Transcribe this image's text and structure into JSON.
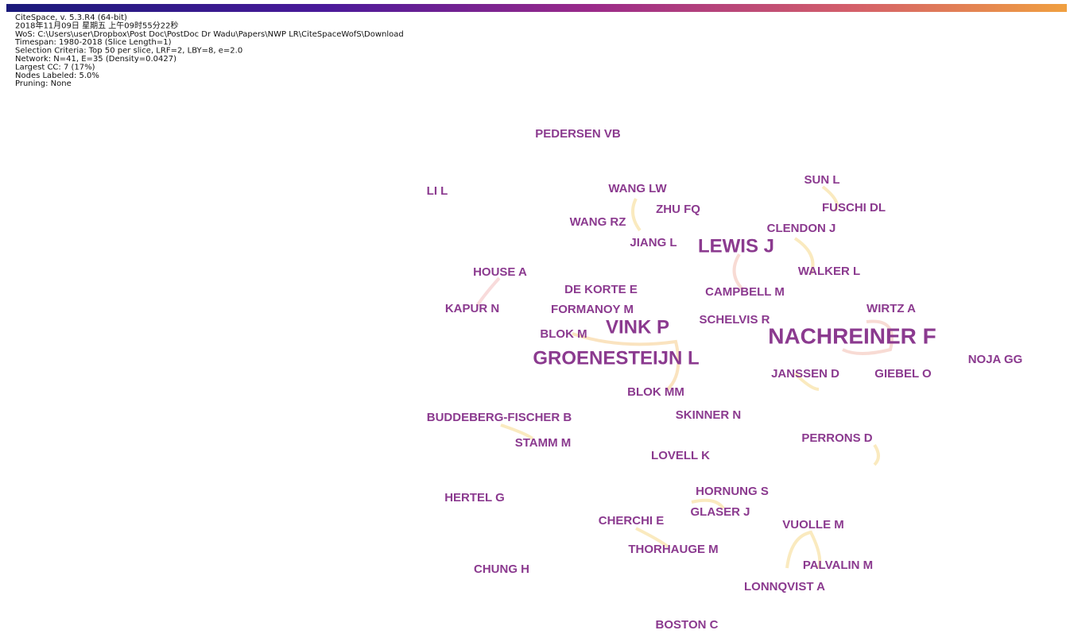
{
  "header": {
    "lines": [
      "CiteSpace, v. 5.3.R4 (64-bit)",
      "2018年11月09日 星期五 上午09时55分22秒",
      "WoS: C:\\Users\\user\\Dropbox\\Post Doc\\PostDoc Dr Wadu\\Papers\\NWP LR\\CiteSpaceWofS\\Download",
      "Timespan: 1980-2018 (Slice Length=1)",
      "Selection Criteria: Top 50 per slice, LRF=2, LBY=8, e=2.0",
      "Network: N=41, E=35 (Density=0.0427)",
      "Largest CC: 7 (17%)",
      "Nodes Labeled: 5.0%",
      "Pruning: None"
    ]
  },
  "nodes": [
    {
      "label": "PEDERSEN VB"
    },
    {
      "label": "LI L"
    },
    {
      "label": "WANG LW"
    },
    {
      "label": "SUN L"
    },
    {
      "label": "ZHU FQ"
    },
    {
      "label": "FUSCHI DL"
    },
    {
      "label": "WANG RZ"
    },
    {
      "label": "CLENDON J"
    },
    {
      "label": "JIANG L"
    },
    {
      "label": "LEWIS J"
    },
    {
      "label": "HOUSE A"
    },
    {
      "label": "WALKER L"
    },
    {
      "label": "DE KORTE E"
    },
    {
      "label": "CAMPBELL M"
    },
    {
      "label": "KAPUR N"
    },
    {
      "label": "FORMANOY M"
    },
    {
      "label": "WIRTZ A"
    },
    {
      "label": "SCHELVIS R"
    },
    {
      "label": "VINK P"
    },
    {
      "label": "BLOK M"
    },
    {
      "label": "NACHREINER F"
    },
    {
      "label": "GROENESTEIJN L"
    },
    {
      "label": "NOJA GG"
    },
    {
      "label": "JANSSEN D"
    },
    {
      "label": "GIEBEL O"
    },
    {
      "label": "BLOK MM"
    },
    {
      "label": "BUDDEBERG-FISCHER B"
    },
    {
      "label": "SKINNER N"
    },
    {
      "label": "STAMM M"
    },
    {
      "label": "PERRONS D"
    },
    {
      "label": "LOVELL K"
    },
    {
      "label": "HORNUNG S"
    },
    {
      "label": "HERTEL G"
    },
    {
      "label": "GLASER J"
    },
    {
      "label": "CHERCHI E"
    },
    {
      "label": "VUOLLE M"
    },
    {
      "label": "THORHAUGE M"
    },
    {
      "label": "PALVALIN M"
    },
    {
      "label": "CHUNG H"
    },
    {
      "label": "LONNQVIST A"
    },
    {
      "label": "BOSTON C"
    }
  ]
}
